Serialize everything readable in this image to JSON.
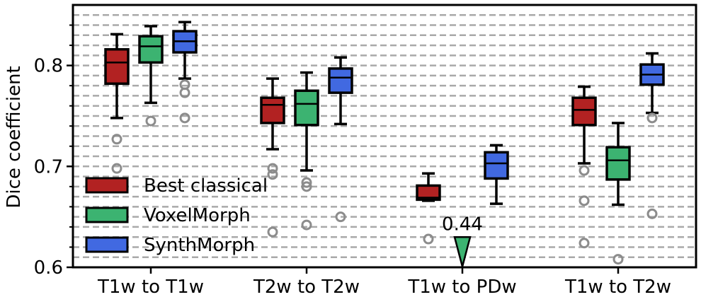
{
  "chart_data": {
    "type": "box",
    "ylabel": "Dice coefficient",
    "ylim": [
      0.6,
      0.86
    ],
    "yticks": [
      0.6,
      0.7,
      0.8
    ],
    "ytick_labels": [
      "0.6",
      "0.7",
      "0.8"
    ],
    "grid": "horizontal dashed minor gridlines",
    "legend_placement": "lower-left",
    "categories": [
      "T1w to T1w",
      "T2w to T2w",
      "T1w to PDw",
      "T1w to T2w"
    ],
    "series": [
      {
        "name": "Best classical",
        "color": "#b22222",
        "boxes": [
          {
            "whislo": 0.748,
            "q1": 0.782,
            "med": 0.803,
            "q3": 0.816,
            "whishi": 0.831,
            "fliers": [
              0.727,
              0.698
            ]
          },
          {
            "whislo": 0.717,
            "q1": 0.743,
            "med": 0.761,
            "q3": 0.768,
            "whishi": 0.787,
            "fliers": [
              0.698,
              0.692,
              0.635
            ]
          },
          {
            "whislo": 0.666,
            "q1": 0.667,
            "med": 0.669,
            "q3": 0.681,
            "whishi": 0.693,
            "fliers": [
              0.628
            ]
          },
          {
            "whislo": 0.703,
            "q1": 0.741,
            "med": 0.756,
            "q3": 0.768,
            "whishi": 0.779,
            "fliers": [
              0.696,
              0.666,
              0.624
            ]
          }
        ]
      },
      {
        "name": "VoxelMorph",
        "color": "#3cb371",
        "boxes": [
          {
            "whislo": 0.763,
            "q1": 0.803,
            "med": 0.819,
            "q3": 0.829,
            "whishi": 0.839,
            "fliers": [
              0.745
            ]
          },
          {
            "whislo": 0.696,
            "q1": 0.741,
            "med": 0.762,
            "q3": 0.775,
            "whishi": 0.793,
            "fliers": [
              0.684,
              0.68,
              0.642
            ]
          },
          {
            "whislo": 0.6,
            "q1": 0.6,
            "med": 0.6,
            "q3": 0.6,
            "whishi": 0.6,
            "fliers": [],
            "offscale_value": 0.44
          },
          {
            "whislo": 0.662,
            "q1": 0.687,
            "med": 0.706,
            "q3": 0.719,
            "whishi": 0.743,
            "fliers": [
              0.608
            ]
          }
        ]
      },
      {
        "name": "SynthMorph",
        "color": "#4169e1",
        "boxes": [
          {
            "whislo": 0.787,
            "q1": 0.813,
            "med": 0.824,
            "q3": 0.834,
            "whishi": 0.843,
            "fliers": [
              0.781,
              0.773,
              0.748
            ]
          },
          {
            "whislo": 0.742,
            "q1": 0.773,
            "med": 0.788,
            "q3": 0.797,
            "whishi": 0.808,
            "fliers": [
              0.65
            ]
          },
          {
            "whislo": 0.663,
            "q1": 0.688,
            "med": 0.703,
            "q3": 0.714,
            "whishi": 0.721,
            "fliers": []
          },
          {
            "whislo": 0.753,
            "q1": 0.781,
            "med": 0.791,
            "q3": 0.801,
            "whishi": 0.812,
            "fliers": [
              0.748,
              0.653
            ]
          }
        ]
      }
    ],
    "annotations": [
      {
        "text": "0.44",
        "category": "T1w to PDw",
        "series": "VoxelMorph"
      }
    ]
  }
}
